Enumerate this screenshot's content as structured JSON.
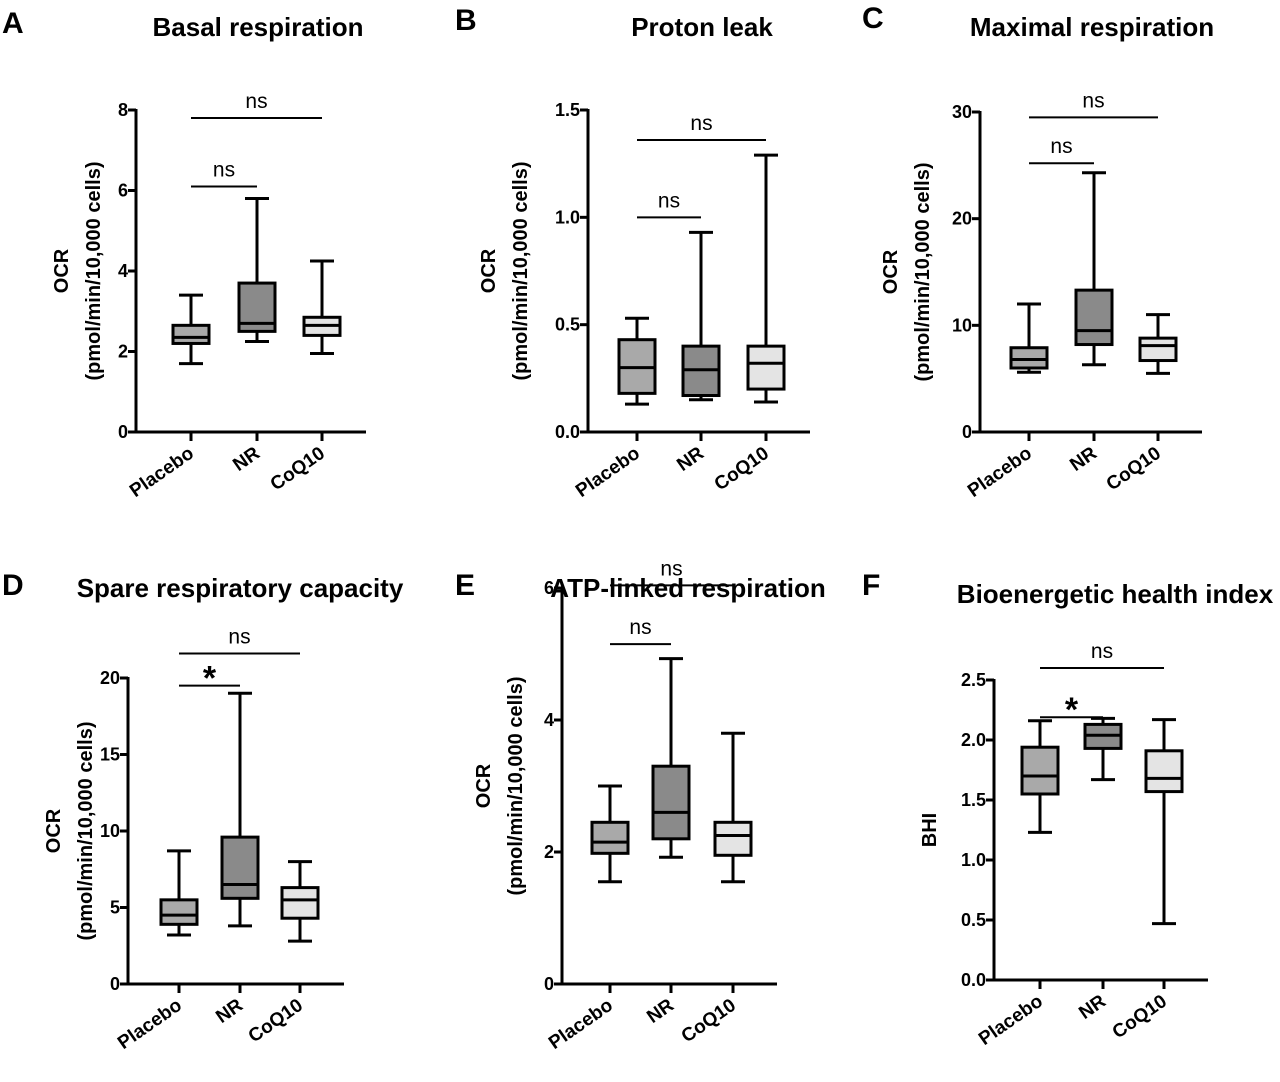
{
  "figure": {
    "categories": [
      "Placebo",
      "NR",
      "CoQ10"
    ],
    "box_colors": {
      "Placebo": "#a9a9a9",
      "NR": "#8a8a8a",
      "CoQ10": "#e4e4e4"
    },
    "stroke_color": "#000000"
  },
  "chart_data": [
    {
      "panel": "A",
      "type": "boxplot",
      "title": "Basal respiration",
      "ylabel_line1": "OCR",
      "ylabel_line2": "(pmol/min/10,000 cells)",
      "ylim": [
        0,
        8
      ],
      "yticks": [
        0,
        2,
        4,
        6,
        8
      ],
      "ytick_labels": [
        "0",
        "2",
        "4",
        "6",
        "8"
      ],
      "categories": [
        "Placebo",
        "NR",
        "CoQ10"
      ],
      "boxes": [
        {
          "category": "Placebo",
          "min": 1.7,
          "q1": 2.2,
          "median": 2.35,
          "q3": 2.65,
          "max": 3.4
        },
        {
          "category": "NR",
          "min": 2.25,
          "q1": 2.5,
          "median": 2.7,
          "q3": 3.7,
          "max": 5.8
        },
        {
          "category": "CoQ10",
          "min": 1.95,
          "q1": 2.4,
          "median": 2.65,
          "q3": 2.85,
          "max": 4.25
        }
      ],
      "comparisons": [
        {
          "from": "Placebo",
          "to": "NR",
          "y": 6.1,
          "label": "ns"
        },
        {
          "from": "Placebo",
          "to": "CoQ10",
          "y": 7.8,
          "label": "ns"
        }
      ]
    },
    {
      "panel": "B",
      "type": "boxplot",
      "title": "Proton leak",
      "ylabel_line1": "OCR",
      "ylabel_line2": "(pmol/min/10,000 cells)",
      "ylim": [
        0,
        1.5
      ],
      "yticks": [
        0,
        0.5,
        1.0,
        1.5
      ],
      "ytick_labels": [
        "0.0",
        "0.5",
        "1.0",
        "1.5"
      ],
      "categories": [
        "Placebo",
        "NR",
        "CoQ10"
      ],
      "boxes": [
        {
          "category": "Placebo",
          "min": 0.13,
          "q1": 0.18,
          "median": 0.3,
          "q3": 0.43,
          "max": 0.53
        },
        {
          "category": "NR",
          "min": 0.15,
          "q1": 0.17,
          "median": 0.29,
          "q3": 0.4,
          "max": 0.93
        },
        {
          "category": "CoQ10",
          "min": 0.14,
          "q1": 0.2,
          "median": 0.32,
          "q3": 0.4,
          "max": 1.29
        }
      ],
      "comparisons": [
        {
          "from": "Placebo",
          "to": "NR",
          "y": 1.0,
          "label": "ns"
        },
        {
          "from": "Placebo",
          "to": "CoQ10",
          "y": 1.36,
          "label": "ns"
        }
      ]
    },
    {
      "panel": "C",
      "type": "boxplot",
      "title": "Maximal respiration",
      "ylabel_line1": "OCR",
      "ylabel_line2": "(pmol/min/10,000 cells)",
      "ylim": [
        0,
        30
      ],
      "yticks": [
        0,
        10,
        20,
        30
      ],
      "ytick_labels": [
        "0",
        "10",
        "20",
        "30"
      ],
      "categories": [
        "Placebo",
        "NR",
        "CoQ10"
      ],
      "boxes": [
        {
          "category": "Placebo",
          "min": 5.6,
          "q1": 6.0,
          "median": 6.8,
          "q3": 7.9,
          "max": 12.0
        },
        {
          "category": "NR",
          "min": 6.3,
          "q1": 8.2,
          "median": 9.5,
          "q3": 13.3,
          "max": 24.3
        },
        {
          "category": "CoQ10",
          "min": 5.5,
          "q1": 6.7,
          "median": 8.1,
          "q3": 8.8,
          "max": 11.0
        }
      ],
      "comparisons": [
        {
          "from": "Placebo",
          "to": "NR",
          "y": 25.2,
          "label": "ns"
        },
        {
          "from": "Placebo",
          "to": "CoQ10",
          "y": 29.5,
          "label": "ns"
        }
      ]
    },
    {
      "panel": "D",
      "type": "boxplot",
      "title": "Spare respiratory capacity",
      "ylabel_line1": "OCR",
      "ylabel_line2": "(pmol/min/10,000 cells)",
      "ylim": [
        0,
        20
      ],
      "yticks": [
        0,
        5,
        10,
        15,
        20
      ],
      "ytick_labels": [
        "0",
        "5",
        "10",
        "15",
        "20"
      ],
      "categories": [
        "Placebo",
        "NR",
        "CoQ10"
      ],
      "boxes": [
        {
          "category": "Placebo",
          "min": 3.2,
          "q1": 3.9,
          "median": 4.5,
          "q3": 5.5,
          "max": 8.7
        },
        {
          "category": "NR",
          "min": 3.8,
          "q1": 5.6,
          "median": 6.5,
          "q3": 9.6,
          "max": 19.0
        },
        {
          "category": "CoQ10",
          "min": 2.8,
          "q1": 4.3,
          "median": 5.5,
          "q3": 6.3,
          "max": 8.0
        }
      ],
      "comparisons": [
        {
          "from": "Placebo",
          "to": "NR",
          "y": 19.5,
          "label": "*"
        },
        {
          "from": "Placebo",
          "to": "CoQ10",
          "y": 21.6,
          "label": "ns"
        }
      ]
    },
    {
      "panel": "E",
      "type": "boxplot",
      "title": "ATP-linked respiration",
      "ylabel_line1": "OCR",
      "ylabel_line2": "(pmol/min/10,000 cells)",
      "ylim": [
        0,
        6
      ],
      "yticks": [
        0,
        2,
        4,
        6
      ],
      "ytick_labels": [
        "0",
        "2",
        "4",
        "6"
      ],
      "categories": [
        "Placebo",
        "NR",
        "CoQ10"
      ],
      "boxes": [
        {
          "category": "Placebo",
          "min": 1.55,
          "q1": 1.98,
          "median": 2.15,
          "q3": 2.45,
          "max": 3.0
        },
        {
          "category": "NR",
          "min": 1.92,
          "q1": 2.2,
          "median": 2.6,
          "q3": 3.3,
          "max": 4.93
        },
        {
          "category": "CoQ10",
          "min": 1.55,
          "q1": 1.95,
          "median": 2.25,
          "q3": 2.45,
          "max": 3.8
        }
      ],
      "comparisons": [
        {
          "from": "Placebo",
          "to": "NR",
          "y": 5.15,
          "label": "ns"
        },
        {
          "from": "Placebo",
          "to": "CoQ10",
          "y": 6.04,
          "label": "ns"
        }
      ]
    },
    {
      "panel": "F",
      "type": "boxplot",
      "title": "Bioenergetic health index",
      "ylabel_line1": "BHI",
      "ylabel_line2": "",
      "ylim": [
        0,
        2.5
      ],
      "yticks": [
        0,
        0.5,
        1.0,
        1.5,
        2.0,
        2.5
      ],
      "ytick_labels": [
        "0.0",
        "0.5",
        "1.0",
        "1.5",
        "2.0",
        "2.5"
      ],
      "categories": [
        "Placebo",
        "NR",
        "CoQ10"
      ],
      "boxes": [
        {
          "category": "Placebo",
          "min": 1.23,
          "q1": 1.55,
          "median": 1.7,
          "q3": 1.94,
          "max": 2.16
        },
        {
          "category": "NR",
          "min": 1.67,
          "q1": 1.93,
          "median": 2.04,
          "q3": 2.13,
          "max": 2.18
        },
        {
          "category": "CoQ10",
          "min": 0.47,
          "q1": 1.57,
          "median": 1.68,
          "q3": 1.91,
          "max": 2.17
        }
      ],
      "comparisons": [
        {
          "from": "Placebo",
          "to": "NR",
          "y": 2.19,
          "label": "*"
        },
        {
          "from": "Placebo",
          "to": "CoQ10",
          "y": 2.6,
          "label": "ns"
        }
      ]
    }
  ]
}
